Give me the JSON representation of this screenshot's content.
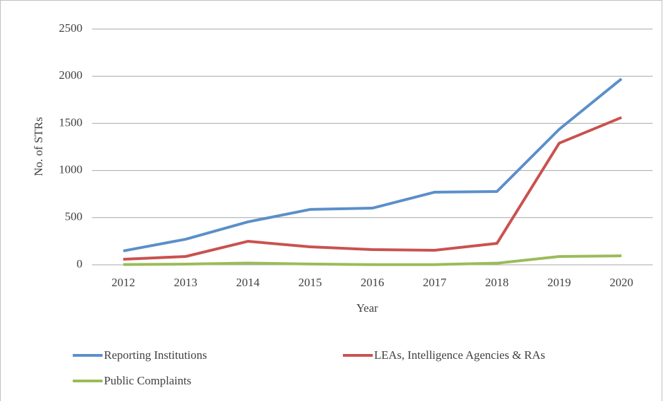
{
  "chart_data": {
    "type": "line",
    "x_label": "Year",
    "y_label": "No. of STRs",
    "categories": [
      "2012",
      "2013",
      "2014",
      "2015",
      "2016",
      "2017",
      "2018",
      "2019",
      "2020"
    ],
    "series": [
      {
        "name": "Reporting Institutions",
        "color": "#5b8fc9",
        "values": [
          147,
          271,
          455,
          587,
          601,
          770,
          777,
          1437,
          1972
        ]
      },
      {
        "name": "LEAs, Intelligence Agencies & RAs",
        "color": "#c9524f",
        "values": [
          59,
          88,
          249,
          191,
          161,
          154,
          227,
          1290,
          1562
        ]
      },
      {
        "name": "Public Complaints",
        "color": "#9bbb59",
        "values": [
          3,
          7,
          18,
          8,
          2,
          2,
          17,
          88,
          95
        ]
      }
    ],
    "ylim": [
      0,
      2500
    ],
    "yticks": [
      0,
      500,
      1000,
      1500,
      2000,
      2500
    ],
    "grid": true,
    "legend": "bottom"
  }
}
